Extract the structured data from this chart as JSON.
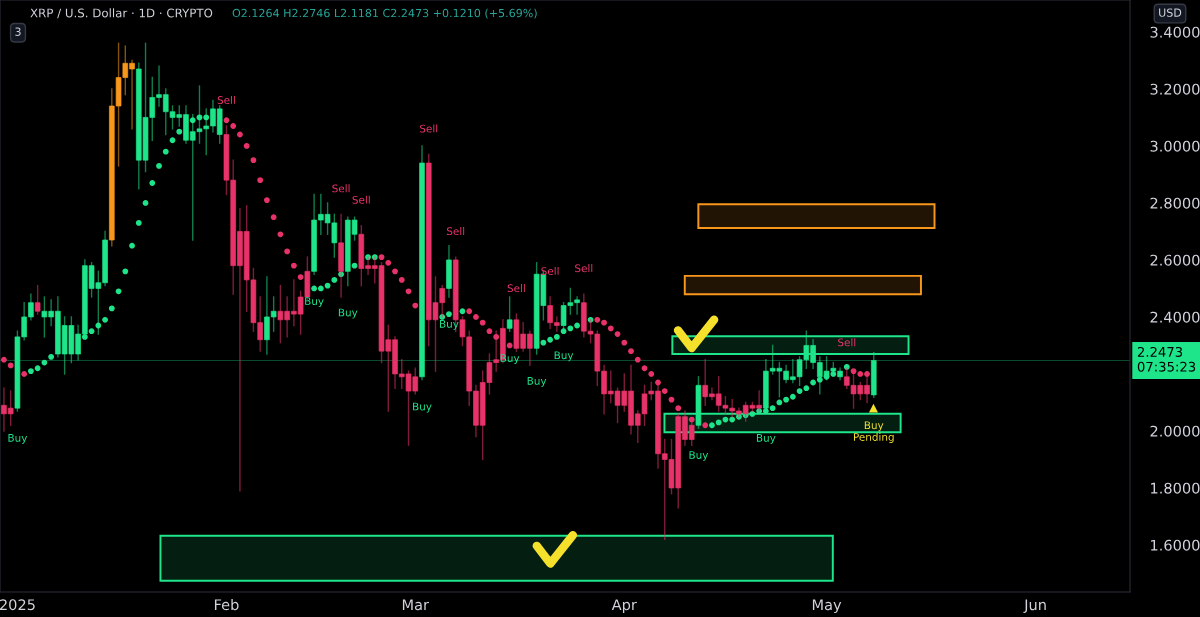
{
  "chart_data": {
    "type": "candlestick",
    "title": "XRP / U.S. Dollar · 1D · CRYPTO",
    "subtitle": "O2.1264 H2.2746 L2.1181 C2.2473 +0.1210 (+5.69%)",
    "x": [
      "2024-12-30",
      "2024-12-31",
      "2025-01-01",
      "2025-01-02",
      "2025-01-03",
      "2025-01-04",
      "2025-01-05",
      "2025-01-06",
      "2025-01-07",
      "2025-01-08",
      "2025-01-09",
      "2025-01-10",
      "2025-01-11",
      "2025-01-12",
      "2025-01-13",
      "2025-01-14",
      "2025-01-15",
      "2025-01-16",
      "2025-01-17",
      "2025-01-18",
      "2025-01-19",
      "2025-01-20",
      "2025-01-21",
      "2025-01-22",
      "2025-01-23",
      "2025-01-24",
      "2025-01-25",
      "2025-01-26",
      "2025-01-27",
      "2025-01-28",
      "2025-01-29",
      "2025-01-30",
      "2025-01-31",
      "2025-02-01",
      "2025-02-02",
      "2025-02-03",
      "2025-02-04",
      "2025-02-05",
      "2025-02-06",
      "2025-02-07",
      "2025-02-08",
      "2025-02-09",
      "2025-02-10",
      "2025-02-11",
      "2025-02-12",
      "2025-02-13",
      "2025-02-14",
      "2025-02-15",
      "2025-02-16",
      "2025-02-17",
      "2025-02-18",
      "2025-02-19",
      "2025-02-20",
      "2025-02-21",
      "2025-02-22",
      "2025-02-23",
      "2025-02-24",
      "2025-02-25",
      "2025-02-26",
      "2025-02-27",
      "2025-02-28",
      "2025-03-01",
      "2025-03-02",
      "2025-03-03",
      "2025-03-04",
      "2025-03-05",
      "2025-03-06",
      "2025-03-07",
      "2025-03-08",
      "2025-03-09",
      "2025-03-10",
      "2025-03-11",
      "2025-03-12",
      "2025-03-13",
      "2025-03-14",
      "2025-03-15",
      "2025-03-16",
      "2025-03-17",
      "2025-03-18",
      "2025-03-19",
      "2025-03-20",
      "2025-03-21",
      "2025-03-22",
      "2025-03-23",
      "2025-03-24",
      "2025-03-25",
      "2025-03-26",
      "2025-03-27",
      "2025-03-28",
      "2025-03-29",
      "2025-03-30",
      "2025-03-31",
      "2025-04-01",
      "2025-04-02",
      "2025-04-03",
      "2025-04-04",
      "2025-04-05",
      "2025-04-06",
      "2025-04-07",
      "2025-04-08",
      "2025-04-09",
      "2025-04-10",
      "2025-04-11",
      "2025-04-12",
      "2025-04-13",
      "2025-04-14",
      "2025-04-15",
      "2025-04-16",
      "2025-04-17",
      "2025-04-18",
      "2025-04-19",
      "2025-04-20",
      "2025-04-21",
      "2025-04-22",
      "2025-04-23",
      "2025-04-24",
      "2025-04-25",
      "2025-04-26",
      "2025-04-27",
      "2025-04-28",
      "2025-04-29",
      "2025-04-30",
      "2025-05-01",
      "2025-05-02",
      "2025-05-03",
      "2025-05-04",
      "2025-05-05",
      "2025-05-06",
      "2025-05-07",
      "2025-05-08"
    ],
    "ohlc": [
      [
        2.09,
        2.15,
        2.0,
        2.06
      ],
      [
        2.08,
        2.14,
        2.02,
        2.06
      ],
      [
        2.08,
        2.35,
        2.07,
        2.33
      ],
      [
        2.33,
        2.45,
        2.32,
        2.4
      ],
      [
        2.4,
        2.48,
        2.39,
        2.45
      ],
      [
        2.45,
        2.51,
        2.41,
        2.42
      ],
      [
        2.4,
        2.47,
        2.33,
        2.42
      ],
      [
        2.4,
        2.46,
        2.37,
        2.42
      ],
      [
        2.27,
        2.47,
        2.26,
        2.42
      ],
      [
        2.27,
        2.4,
        2.2,
        2.37
      ],
      [
        2.27,
        2.4,
        2.24,
        2.37
      ],
      [
        2.27,
        2.37,
        2.25,
        2.34
      ],
      [
        2.34,
        2.6,
        2.34,
        2.58
      ],
      [
        2.5,
        2.59,
        2.47,
        2.58
      ],
      [
        2.5,
        2.56,
        2.34,
        2.52
      ],
      [
        2.52,
        2.7,
        2.51,
        2.67
      ],
      [
        2.67,
        3.2,
        2.65,
        3.14
      ],
      [
        3.14,
        3.36,
        2.93,
        3.24
      ],
      [
        3.24,
        3.35,
        3.18,
        3.29
      ],
      [
        3.27,
        3.3,
        3.06,
        3.29
      ],
      [
        2.95,
        3.29,
        2.85,
        3.27
      ],
      [
        2.95,
        3.36,
        2.91,
        3.1
      ],
      [
        3.1,
        3.24,
        3.02,
        3.17
      ],
      [
        3.17,
        3.28,
        3.14,
        3.18
      ],
      [
        3.12,
        3.2,
        3.04,
        3.18
      ],
      [
        3.1,
        3.14,
        3.06,
        3.12
      ],
      [
        3.1,
        3.14,
        3.07,
        3.11
      ],
      [
        3.02,
        3.14,
        3.01,
        3.11
      ],
      [
        3.02,
        3.11,
        2.67,
        3.05
      ],
      [
        3.05,
        3.21,
        3.01,
        3.06
      ],
      [
        3.06,
        3.13,
        2.97,
        3.07
      ],
      [
        3.07,
        3.16,
        3.05,
        3.13
      ],
      [
        3.04,
        3.14,
        3.01,
        3.13
      ],
      [
        3.04,
        3.07,
        2.83,
        2.88
      ],
      [
        2.88,
        2.95,
        2.48,
        2.58
      ],
      [
        2.7,
        2.78,
        1.79,
        2.58
      ],
      [
        2.7,
        2.79,
        2.42,
        2.53
      ],
      [
        2.53,
        2.57,
        2.35,
        2.38
      ],
      [
        2.38,
        2.47,
        2.28,
        2.32
      ],
      [
        2.32,
        2.54,
        2.27,
        2.4
      ],
      [
        2.4,
        2.47,
        2.35,
        2.42
      ],
      [
        2.42,
        2.51,
        2.31,
        2.39
      ],
      [
        2.42,
        2.47,
        2.33,
        2.39
      ],
      [
        2.42,
        2.53,
        2.37,
        2.41
      ],
      [
        2.47,
        2.49,
        2.34,
        2.41
      ],
      [
        2.56,
        2.61,
        2.46,
        2.47
      ],
      [
        2.56,
        2.83,
        2.55,
        2.74
      ],
      [
        2.74,
        2.83,
        2.69,
        2.76
      ],
      [
        2.73,
        2.8,
        2.69,
        2.76
      ],
      [
        2.66,
        2.76,
        2.61,
        2.73
      ],
      [
        2.66,
        2.76,
        2.47,
        2.56
      ],
      [
        2.56,
        2.75,
        2.51,
        2.74
      ],
      [
        2.69,
        2.75,
        2.67,
        2.74
      ],
      [
        2.69,
        2.72,
        2.51,
        2.57
      ],
      [
        2.58,
        2.61,
        2.55,
        2.57
      ],
      [
        2.58,
        2.61,
        2.52,
        2.57
      ],
      [
        2.58,
        2.59,
        2.24,
        2.28
      ],
      [
        2.32,
        2.37,
        2.07,
        2.28
      ],
      [
        2.32,
        2.33,
        2.15,
        2.2
      ],
      [
        2.2,
        2.25,
        2.15,
        2.19
      ],
      [
        2.2,
        2.21,
        1.95,
        2.14
      ],
      [
        2.19,
        2.22,
        2.13,
        2.14
      ],
      [
        2.19,
        3.0,
        2.18,
        2.94
      ],
      [
        2.94,
        2.97,
        2.3,
        2.39
      ],
      [
        2.45,
        2.54,
        2.21,
        2.39
      ],
      [
        2.5,
        2.51,
        2.4,
        2.45
      ],
      [
        2.5,
        2.65,
        2.47,
        2.6
      ],
      [
        2.6,
        2.61,
        2.35,
        2.39
      ],
      [
        2.39,
        2.4,
        2.3,
        2.33
      ],
      [
        2.33,
        2.35,
        2.09,
        2.14
      ],
      [
        2.14,
        2.16,
        1.98,
        2.02
      ],
      [
        2.17,
        2.21,
        1.9,
        2.02
      ],
      [
        2.24,
        2.27,
        2.13,
        2.17
      ],
      [
        2.25,
        2.35,
        2.21,
        2.24
      ],
      [
        2.36,
        2.39,
        2.24,
        2.25
      ],
      [
        2.36,
        2.47,
        2.35,
        2.39
      ],
      [
        2.39,
        2.41,
        2.28,
        2.29
      ],
      [
        2.34,
        2.38,
        2.28,
        2.29
      ],
      [
        2.34,
        2.35,
        2.23,
        2.29
      ],
      [
        2.29,
        2.59,
        2.27,
        2.55
      ],
      [
        2.44,
        2.56,
        2.39,
        2.55
      ],
      [
        2.44,
        2.47,
        2.36,
        2.38
      ],
      [
        2.38,
        2.4,
        2.35,
        2.37
      ],
      [
        2.37,
        2.45,
        2.36,
        2.44
      ],
      [
        2.44,
        2.5,
        2.41,
        2.45
      ],
      [
        2.45,
        2.47,
        2.41,
        2.46
      ],
      [
        2.45,
        2.48,
        2.33,
        2.35
      ],
      [
        2.35,
        2.39,
        2.31,
        2.34
      ],
      [
        2.34,
        2.35,
        2.16,
        2.21
      ],
      [
        2.21,
        2.23,
        2.06,
        2.13
      ],
      [
        2.14,
        2.21,
        2.1,
        2.13
      ],
      [
        2.14,
        2.15,
        2.03,
        2.09
      ],
      [
        2.14,
        2.2,
        2.07,
        2.09
      ],
      [
        2.14,
        2.23,
        1.99,
        2.02
      ],
      [
        2.06,
        2.07,
        1.96,
        2.02
      ],
      [
        2.13,
        2.16,
        2.02,
        2.06
      ],
      [
        2.14,
        2.17,
        2.11,
        2.13
      ],
      [
        2.14,
        2.17,
        1.87,
        1.92
      ],
      [
        1.92,
        1.97,
        1.62,
        1.9
      ],
      [
        1.9,
        1.97,
        1.78,
        1.8
      ],
      [
        2.05,
        2.06,
        1.73,
        1.8
      ],
      [
        2.05,
        2.07,
        1.95,
        1.97
      ],
      [
        2.02,
        2.04,
        1.95,
        1.97
      ],
      [
        2.02,
        2.19,
        2.01,
        2.16
      ],
      [
        2.16,
        2.25,
        2.09,
        2.12
      ],
      [
        2.13,
        2.15,
        2.11,
        2.12
      ],
      [
        2.13,
        2.19,
        2.07,
        2.09
      ],
      [
        2.09,
        2.12,
        2.06,
        2.08
      ],
      [
        2.08,
        2.11,
        2.05,
        2.07
      ],
      [
        2.07,
        2.08,
        2.05,
        2.06
      ],
      [
        2.09,
        2.1,
        2.035,
        2.06
      ],
      [
        2.09,
        2.1,
        2.07,
        2.08
      ],
      [
        2.09,
        2.14,
        2.07,
        2.08
      ],
      [
        2.08,
        2.25,
        2.07,
        2.21
      ],
      [
        2.21,
        2.3,
        2.2,
        2.22
      ],
      [
        2.21,
        2.24,
        2.12,
        2.22
      ],
      [
        2.18,
        2.23,
        2.17,
        2.21
      ],
      [
        2.18,
        2.25,
        2.17,
        2.19
      ],
      [
        2.19,
        2.26,
        2.16,
        2.25
      ],
      [
        2.25,
        2.35,
        2.22,
        2.3
      ],
      [
        2.24,
        2.32,
        2.22,
        2.3
      ],
      [
        2.19,
        2.26,
        2.13,
        2.24
      ],
      [
        2.19,
        2.26,
        2.18,
        2.21
      ],
      [
        2.21,
        2.24,
        2.2,
        2.22
      ],
      [
        2.19,
        2.22,
        2.18,
        2.21
      ],
      [
        2.19,
        2.22,
        2.15,
        2.16
      ],
      [
        2.16,
        2.2,
        2.08,
        2.13
      ],
      [
        2.16,
        2.17,
        2.11,
        2.13
      ],
      [
        2.16,
        2.2,
        2.1,
        2.13
      ],
      [
        2.1264,
        2.2746,
        2.1181,
        2.2473
      ]
    ],
    "colors": [
      "#e8336a",
      "#e8336a",
      "#1fe58a",
      "#1fe58a",
      "#1fe58a",
      "#e8336a",
      "#1fe58a",
      "#1fe58a",
      "#1fe58a",
      "#1fe58a",
      "#1fe58a",
      "#1fe58a",
      "#1fe58a",
      "#1fe58a",
      "#1fe58a",
      "#1fe58a",
      "#f7971c",
      "#f7971c",
      "#f7971c",
      "#f7971c",
      "#1fe58a",
      "#1fe58a",
      "#1fe58a",
      "#1fe58a",
      "#1fe58a",
      "#1fe58a",
      "#1fe58a",
      "#1fe58a",
      "#1fe58a",
      "#1fe58a",
      "#1fe58a",
      "#1fe58a",
      "#1fe58a",
      "#e8336a",
      "#e8336a",
      "#e8336a",
      "#e8336a",
      "#e8336a",
      "#e8336a",
      "#1fe58a",
      "#1fe58a",
      "#e8336a",
      "#e8336a",
      "#e8336a",
      "#e8336a",
      "#e8336a",
      "#1fe58a",
      "#1fe58a",
      "#1fe58a",
      "#1fe58a",
      "#e8336a",
      "#1fe58a",
      "#1fe58a",
      "#e8336a",
      "#e8336a",
      "#e8336a",
      "#e8336a",
      "#e8336a",
      "#e8336a",
      "#e8336a",
      "#e8336a",
      "#e8336a",
      "#1fe58a",
      "#e8336a",
      "#e8336a",
      "#e8336a",
      "#1fe58a",
      "#e8336a",
      "#e8336a",
      "#e8336a",
      "#e8336a",
      "#e8336a",
      "#e8336a",
      "#e8336a",
      "#e8336a",
      "#1fe58a",
      "#e8336a",
      "#e8336a",
      "#e8336a",
      "#1fe58a",
      "#1fe58a",
      "#e8336a",
      "#e8336a",
      "#1fe58a",
      "#1fe58a",
      "#1fe58a",
      "#e8336a",
      "#e8336a",
      "#e8336a",
      "#e8336a",
      "#e8336a",
      "#e8336a",
      "#e8336a",
      "#e8336a",
      "#e8336a",
      "#e8336a",
      "#e8336a",
      "#e8336a",
      "#e8336a",
      "#e8336a",
      "#e8336a",
      "#e8336a",
      "#e8336a",
      "#1fe58a",
      "#e8336a",
      "#e8336a",
      "#e8336a",
      "#e8336a",
      "#e8336a",
      "#e8336a",
      "#e8336a",
      "#e8336a",
      "#e8336a",
      "#1fe58a",
      "#1fe58a",
      "#1fe58a",
      "#1fe58a",
      "#1fe58a",
      "#1fe58a",
      "#1fe58a",
      "#1fe58a",
      "#1fe58a",
      "#1fe58a",
      "#1fe58a",
      "#1fe58a",
      "#e8336a",
      "#e8336a",
      "#e8336a",
      "#e8336a",
      "#1fe58a"
    ],
    "series": [
      {
        "type": "scatter",
        "marker": "circle",
        "values": [
          2.25,
          2.23,
          null,
          2.2,
          2.21,
          2.22,
          2.24,
          2.26,
          null,
          null,
          null,
          null,
          2.33,
          2.35,
          2.37,
          2.39,
          2.43,
          2.49,
          2.56,
          2.65,
          2.73,
          2.8,
          2.87,
          2.93,
          2.98,
          3.02,
          3.05,
          null,
          3.09,
          3.1,
          3.1,
          null,
          null,
          3.09,
          3.07,
          3.04,
          3.0,
          2.95,
          2.88,
          2.81,
          2.75,
          2.69,
          2.63,
          2.58,
          2.54,
          null,
          2.5,
          2.5,
          2.51,
          2.53,
          2.55,
          null,
          2.58,
          null,
          2.61,
          2.61,
          2.61,
          2.59,
          2.56,
          2.53,
          2.49,
          2.44,
          null,
          null,
          null,
          2.4,
          2.41,
          null,
          2.42,
          2.42,
          2.4,
          2.38,
          2.35,
          2.33,
          null,
          2.3,
          null,
          null,
          null,
          null,
          2.31,
          2.32,
          2.33,
          2.35,
          2.36,
          2.37,
          null,
          2.39,
          2.39,
          2.38,
          2.36,
          2.34,
          2.31,
          2.28,
          2.25,
          2.22,
          2.2,
          2.17,
          2.14,
          2.11,
          2.08,
          null,
          2.04,
          null,
          2.02,
          2.02,
          2.03,
          2.04,
          2.04,
          2.05,
          2.055,
          2.06,
          2.07,
          2.07,
          2.08,
          2.1,
          2.11,
          2.12,
          2.14,
          2.15,
          2.17,
          2.18,
          2.19,
          2.2,
          null,
          2.225,
          2.21,
          2.2,
          2.2,
          null
        ],
        "colors": [
          "#e8336a",
          "#e8336a",
          null,
          "#e8336a",
          "#1fe58a",
          "#1fe58a",
          "#1fe58a",
          "#1fe58a",
          null,
          null,
          null,
          null,
          "#1fe58a",
          "#1fe58a",
          "#1fe58a",
          "#1fe58a",
          "#1fe58a",
          "#1fe58a",
          "#1fe58a",
          "#1fe58a",
          "#1fe58a",
          "#1fe58a",
          "#1fe58a",
          "#1fe58a",
          "#1fe58a",
          "#1fe58a",
          "#1fe58a",
          null,
          "#1fe58a",
          "#1fe58a",
          "#1fe58a",
          null,
          null,
          "#e8336a",
          "#e8336a",
          "#e8336a",
          "#e8336a",
          "#e8336a",
          "#e8336a",
          "#e8336a",
          "#e8336a",
          "#e8336a",
          "#e8336a",
          "#e8336a",
          "#e8336a",
          null,
          "#1fe58a",
          "#1fe58a",
          "#1fe58a",
          "#1fe58a",
          "#1fe58a",
          null,
          "#1fe58a",
          null,
          "#1fe58a",
          "#1fe58a",
          "#e8336a",
          "#e8336a",
          "#e8336a",
          "#e8336a",
          "#e8336a",
          "#e8336a",
          null,
          null,
          null,
          "#1fe58a",
          "#1fe58a",
          null,
          "#1fe58a",
          "#e8336a",
          "#e8336a",
          "#e8336a",
          "#e8336a",
          "#e8336a",
          null,
          "#e8336a",
          null,
          null,
          null,
          null,
          "#1fe58a",
          "#1fe58a",
          "#1fe58a",
          "#1fe58a",
          "#1fe58a",
          "#1fe58a",
          null,
          "#1fe58a",
          "#e8336a",
          "#e8336a",
          "#e8336a",
          "#e8336a",
          "#e8336a",
          "#e8336a",
          "#e8336a",
          "#e8336a",
          "#e8336a",
          "#e8336a",
          "#e8336a",
          "#e8336a",
          "#e8336a",
          null,
          "#e8336a",
          null,
          "#e8336a",
          "#1fe58a",
          "#1fe58a",
          "#1fe58a",
          "#1fe58a",
          "#1fe58a",
          "#1fe58a",
          "#1fe58a",
          "#1fe58a",
          "#1fe58a",
          "#1fe58a",
          "#1fe58a",
          "#1fe58a",
          "#1fe58a",
          "#1fe58a",
          "#1fe58a",
          "#1fe58a",
          "#1fe58a",
          "#1fe58a",
          "#1fe58a",
          null,
          "#1fe58a",
          "#e8336a",
          "#e8336a",
          "#e8336a",
          null
        ]
      }
    ],
    "xlim": [
      "2024-12-29T10:00",
      "2025-06-15"
    ],
    "xticks": [
      {
        "value": "2025-01-01",
        "label": "2025"
      },
      {
        "value": "2025-02-01",
        "label": "Feb"
      },
      {
        "value": "2025-03-01",
        "label": "Mar"
      },
      {
        "value": "2025-04-01",
        "label": "Apr"
      },
      {
        "value": "2025-05-01",
        "label": "May"
      },
      {
        "value": "2025-06-01",
        "label": "Jun"
      }
    ],
    "ylim": [
      1.435,
      3.512
    ],
    "yticks": [
      {
        "value": 1.6,
        "label": "1.6000"
      },
      {
        "value": 1.8,
        "label": "1.8000"
      },
      {
        "value": 2.0,
        "label": "2.0000"
      },
      {
        "value": 2.4,
        "label": "2.4000"
      },
      {
        "value": 2.6,
        "label": "2.6000"
      },
      {
        "value": 2.8,
        "label": "2.8000"
      },
      {
        "value": 3.0,
        "label": "3.0000"
      },
      {
        "value": 3.2,
        "label": "3.2000"
      },
      {
        "value": 3.4,
        "label": "3.4000"
      }
    ],
    "ref_lines": [
      {
        "axis": "y",
        "value": 2.2473,
        "label": "2.2473\n07:35:23",
        "color": "#1fe58a"
      }
    ],
    "annotations": [
      "USD",
      "3",
      {
        "text": "Sell",
        "x": "2025-02-01",
        "y": 3.07
      },
      {
        "text": "Sell",
        "x": "2025-02-18",
        "y": 2.76
      },
      {
        "text": "Sell",
        "x": "2025-02-21",
        "y": 2.72
      },
      {
        "text": "Sell",
        "x": "2025-03-03",
        "y": 2.97
      },
      {
        "text": "Sell",
        "x": "2025-03-07",
        "y": 2.61
      },
      {
        "text": "Sell",
        "x": "2025-03-16",
        "y": 2.41
      },
      {
        "text": "Sell",
        "x": "2025-03-21",
        "y": 2.47
      },
      {
        "text": "Sell",
        "x": "2025-03-26",
        "y": 2.48
      },
      {
        "text": "Sell",
        "x": "2025-05-04",
        "y": 2.22
      },
      {
        "text": "Buy",
        "x": "2025-01-01",
        "y": 2.07
      },
      {
        "text": "Buy",
        "x": "2025-02-14",
        "y": 2.55
      },
      {
        "text": "Buy",
        "x": "2025-02-19",
        "y": 2.51
      },
      {
        "text": "Buy",
        "x": "2025-03-02",
        "y": 2.18
      },
      {
        "text": "Buy",
        "x": "2025-03-06",
        "y": 2.47
      },
      {
        "text": "Buy",
        "x": "2025-03-15",
        "y": 2.35
      },
      {
        "text": "Buy",
        "x": "2025-03-19",
        "y": 2.27
      },
      {
        "text": "Buy",
        "x": "2025-03-23",
        "y": 2.36
      },
      {
        "text": "Buy",
        "x": "2025-04-12",
        "y": 2.01
      },
      {
        "text": "Buy",
        "x": "2025-04-22",
        "y": 2.07
      },
      {
        "text": "Buy\nPending",
        "x": "2025-05-08",
        "y": 2.1181
      }
    ]
  }
}
